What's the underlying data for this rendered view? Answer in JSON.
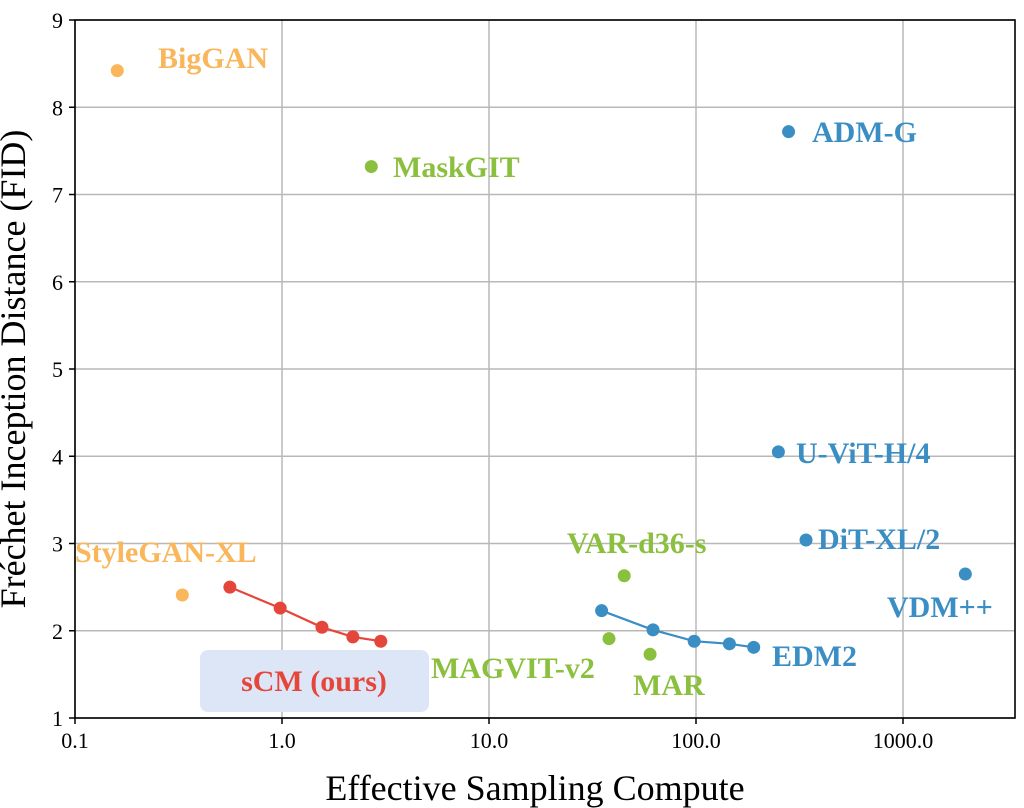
{
  "chart_data": {
    "type": "scatter",
    "xlabel": "Effective Sampling Compute",
    "ylabel": "Fréchet Inception Distance (FID)",
    "x_scale": "log",
    "xlim": [
      0.1,
      3000
    ],
    "ylim": [
      1,
      9
    ],
    "x_ticks": [
      0.1,
      1.0,
      10.0,
      100.0,
      1000.0
    ],
    "x_tick_labels": [
      "0.1",
      "1.0",
      "10.0",
      "100.0",
      "1000.0"
    ],
    "y_ticks": [
      1,
      2,
      3,
      4,
      5,
      6,
      7,
      8,
      9
    ],
    "y_tick_labels": [
      "1",
      "2",
      "3",
      "4",
      "5",
      "6",
      "7",
      "8",
      "9"
    ],
    "grid": true,
    "colors": {
      "orange": "#f9b65a",
      "green": "#8bbf3e",
      "blue": "#3b8ec4",
      "red": "#e5463c",
      "highlight": "#dde6f6"
    },
    "series": [
      {
        "name": "BigGAN",
        "color": "#f9b65a",
        "connected": false,
        "points": [
          [
            0.16,
            8.42
          ]
        ]
      },
      {
        "name": "StyleGAN-XL",
        "color": "#f9b65a",
        "connected": false,
        "points": [
          [
            0.33,
            2.41
          ]
        ]
      },
      {
        "name": "MaskGIT",
        "color": "#8bbf3e",
        "connected": false,
        "points": [
          [
            2.7,
            7.32
          ]
        ]
      },
      {
        "name": "VAR-d36-s",
        "color": "#8bbf3e",
        "connected": false,
        "points": [
          [
            45,
            2.63
          ]
        ]
      },
      {
        "name": "MAGVIT-v2",
        "color": "#8bbf3e",
        "connected": false,
        "points": [
          [
            38,
            1.91
          ]
        ]
      },
      {
        "name": "MAR",
        "color": "#8bbf3e",
        "connected": false,
        "points": [
          [
            60,
            1.73
          ]
        ]
      },
      {
        "name": "ADM-G",
        "color": "#3b8ec4",
        "connected": false,
        "points": [
          [
            280,
            7.72
          ]
        ]
      },
      {
        "name": "U-ViT-H/4",
        "color": "#3b8ec4",
        "connected": false,
        "points": [
          [
            250,
            4.05
          ]
        ]
      },
      {
        "name": "DiT-XL/2",
        "color": "#3b8ec4",
        "connected": false,
        "points": [
          [
            340,
            3.04
          ]
        ]
      },
      {
        "name": "VDM++",
        "color": "#3b8ec4",
        "connected": false,
        "points": [
          [
            2000,
            2.65
          ]
        ]
      },
      {
        "name": "EDM2",
        "color": "#3b8ec4",
        "connected": true,
        "points": [
          [
            35,
            2.23
          ],
          [
            62,
            2.01
          ],
          [
            98,
            1.88
          ],
          [
            145,
            1.85
          ],
          [
            190,
            1.81
          ]
        ]
      },
      {
        "name": "sCM (ours)",
        "color": "#e5463c",
        "connected": true,
        "points": [
          [
            0.56,
            2.5
          ],
          [
            0.98,
            2.26
          ],
          [
            1.56,
            2.04
          ],
          [
            2.2,
            1.93
          ],
          [
            3.0,
            1.88
          ]
        ]
      }
    ],
    "labels": [
      {
        "text": "BigGAN",
        "color": "#f9b65a"
      },
      {
        "text": "StyleGAN-XL",
        "color": "#f9b65a"
      },
      {
        "text": "MaskGIT",
        "color": "#8bbf3e"
      },
      {
        "text": "VAR-d36-s",
        "color": "#8bbf3e"
      },
      {
        "text": "MAGVIT-v2",
        "color": "#8bbf3e"
      },
      {
        "text": "MAR",
        "color": "#8bbf3e"
      },
      {
        "text": "ADM-G",
        "color": "#3b8ec4"
      },
      {
        "text": "U-ViT-H/4",
        "color": "#3b8ec4"
      },
      {
        "text": "DiT-XL/2",
        "color": "#3b8ec4"
      },
      {
        "text": "VDM++",
        "color": "#3b8ec4"
      },
      {
        "text": "EDM2",
        "color": "#3b8ec4"
      },
      {
        "text": "sCM (ours)",
        "color": "#e5463c",
        "highlight": true
      }
    ]
  }
}
